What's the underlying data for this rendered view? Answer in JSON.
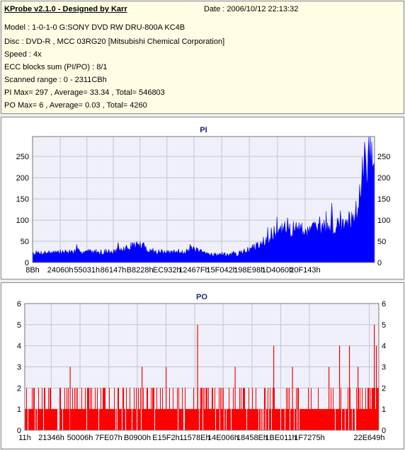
{
  "info": {
    "title": "KProbe v2.1.0 - Designed by Karr",
    "date": "Date : 2006/10/12 22:13:32",
    "lines": [
      "Model : 1-0-1-0 G:SONY    DVD RW DRU-800A  KC4B",
      "Disc : DVD-R , MCC 03RG20  [Mitsubishi Chemical Corporation]",
      "Speed : 4x",
      "ECC blocks sum (PI/PO) : 8/1",
      "Scanned range : 0 - 2311CBh",
      "PI Max= 297 , Average= 33.34 , Total= 546803",
      "PO Max= 6 , Average= 0.03 , Total= 4260"
    ]
  },
  "chart_data": [
    {
      "type": "area",
      "title": "PI",
      "color": "#0000ff",
      "y_ticks": [
        0,
        50,
        100,
        150,
        200,
        250
      ],
      "ylim": [
        0,
        297
      ],
      "x_ticks": [
        "8Bh",
        "24060h",
        "55031h",
        "86147h",
        "B8228h",
        "EC932h",
        "12467Fh",
        "15F042h",
        "198E98h",
        "1D4060h",
        "20F143h"
      ],
      "x_tick_fractions": [
        0,
        0.081,
        0.159,
        0.236,
        0.314,
        0.393,
        0.472,
        0.553,
        0.634,
        0.716,
        0.797
      ],
      "profile_x": [
        0,
        0.05,
        0.1,
        0.15,
        0.2,
        0.23,
        0.27,
        0.3,
        0.32,
        0.35,
        0.4,
        0.44,
        0.47,
        0.5,
        0.55,
        0.6,
        0.65,
        0.7,
        0.75,
        0.8,
        0.85,
        0.89,
        0.905,
        0.93,
        0.95,
        0.97,
        0.985,
        1.0
      ],
      "profile_y": [
        22,
        24,
        25,
        26,
        25,
        24,
        32,
        42,
        40,
        25,
        23,
        26,
        32,
        22,
        18,
        20,
        36,
        66,
        80,
        75,
        80,
        88,
        92,
        102,
        135,
        225,
        255,
        215
      ],
      "grid": true,
      "legend": "none"
    },
    {
      "type": "bar",
      "title": "PO",
      "color": "#ff0000",
      "y_ticks": [
        0,
        1,
        2,
        3,
        4,
        5,
        6
      ],
      "ylim": [
        0,
        6
      ],
      "x_ticks": [
        "11h",
        "21346h",
        "50006h",
        "7FE07h",
        "B0900h",
        "E15F2h",
        "11578Eh",
        "14E006h",
        "18458Eh",
        "1BE011h",
        "1F7275h",
        "22E649h"
      ],
      "x_tick_fractions": [
        0,
        0.075,
        0.156,
        0.237,
        0.318,
        0.399,
        0.48,
        0.56,
        0.642,
        0.723,
        0.804,
        0.973
      ],
      "spikes": [
        {
          "x": 0.127,
          "y": 3
        },
        {
          "x": 0.33,
          "y": 3
        },
        {
          "x": 0.398,
          "y": 3
        },
        {
          "x": 0.487,
          "y": 5
        },
        {
          "x": 0.593,
          "y": 3
        },
        {
          "x": 0.702,
          "y": 4
        },
        {
          "x": 0.755,
          "y": 3
        },
        {
          "x": 0.858,
          "y": 3
        },
        {
          "x": 0.888,
          "y": 4
        },
        {
          "x": 0.916,
          "y": 4
        },
        {
          "x": 0.94,
          "y": 3
        },
        {
          "x": 0.986,
          "y": 5
        },
        {
          "x": 0.992,
          "y": 4
        }
      ],
      "grid": true,
      "legend": "none"
    }
  ]
}
